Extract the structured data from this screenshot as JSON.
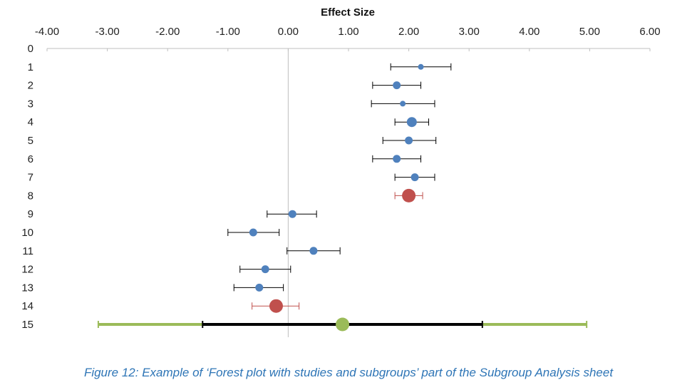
{
  "caption": "Figure 12: Example of ‘Forest plot with studies and subgroups’ part of the Subgroup Analysis sheet",
  "chart_data": {
    "type": "forest",
    "title": "Effect Size",
    "x_axis_position": "top",
    "xlim": [
      -4,
      6
    ],
    "x_ticks": [
      "-4.00",
      "-3.00",
      "-2.00",
      "-1.00",
      "0.00",
      "1.00",
      "2.00",
      "3.00",
      "4.00",
      "5.00",
      "6.00"
    ],
    "x_tick_values": [
      -4,
      -3,
      -2,
      -1,
      0,
      1,
      2,
      3,
      4,
      5,
      6
    ],
    "y_ticks": [
      "0",
      "1",
      "2",
      "3",
      "4",
      "5",
      "6",
      "7",
      "8",
      "9",
      "10",
      "11",
      "12",
      "13",
      "14",
      "15"
    ],
    "ylim": [
      0,
      15
    ],
    "y_inverted": true,
    "reference_line_x": 0,
    "colors": {
      "study": "#4f81bd",
      "subgroup": "#c0504d",
      "overall": "#9bbb59",
      "overall_inner": "#000000",
      "axis": "#bfbfbf"
    },
    "rows": [
      {
        "y": 1,
        "estimate": 2.2,
        "lower": 1.7,
        "upper": 2.7,
        "kind": "study",
        "marker": "small"
      },
      {
        "y": 2,
        "estimate": 1.8,
        "lower": 1.4,
        "upper": 2.2,
        "kind": "study",
        "marker": "medium"
      },
      {
        "y": 3,
        "estimate": 1.9,
        "lower": 1.38,
        "upper": 2.43,
        "kind": "study",
        "marker": "small"
      },
      {
        "y": 4,
        "estimate": 2.05,
        "lower": 1.77,
        "upper": 2.33,
        "kind": "study",
        "marker": "large"
      },
      {
        "y": 5,
        "estimate": 2.0,
        "lower": 1.57,
        "upper": 2.45,
        "kind": "study",
        "marker": "medium"
      },
      {
        "y": 6,
        "estimate": 1.8,
        "lower": 1.4,
        "upper": 2.2,
        "kind": "study",
        "marker": "medium"
      },
      {
        "y": 7,
        "estimate": 2.1,
        "lower": 1.77,
        "upper": 2.43,
        "kind": "study",
        "marker": "medium"
      },
      {
        "y": 8,
        "estimate": 2.0,
        "lower": 1.77,
        "upper": 2.23,
        "kind": "subgroup",
        "marker": "xlarge"
      },
      {
        "y": 9,
        "estimate": 0.07,
        "lower": -0.35,
        "upper": 0.47,
        "kind": "study",
        "marker": "medium"
      },
      {
        "y": 10,
        "estimate": -0.58,
        "lower": -1.0,
        "upper": -0.15,
        "kind": "study",
        "marker": "medium"
      },
      {
        "y": 11,
        "estimate": 0.42,
        "lower": -0.02,
        "upper": 0.86,
        "kind": "study",
        "marker": "medium"
      },
      {
        "y": 12,
        "estimate": -0.38,
        "lower": -0.8,
        "upper": 0.04,
        "kind": "study",
        "marker": "medium"
      },
      {
        "y": 13,
        "estimate": -0.48,
        "lower": -0.9,
        "upper": -0.08,
        "kind": "study",
        "marker": "medium"
      },
      {
        "y": 14,
        "estimate": -0.2,
        "lower": -0.6,
        "upper": 0.18,
        "kind": "subgroup",
        "marker": "xlarge"
      },
      {
        "y": 15,
        "estimate": 0.9,
        "lower": -1.42,
        "upper": 3.22,
        "pred_lower": -3.15,
        "pred_upper": 4.95,
        "kind": "overall",
        "marker": "xlarge"
      }
    ]
  }
}
